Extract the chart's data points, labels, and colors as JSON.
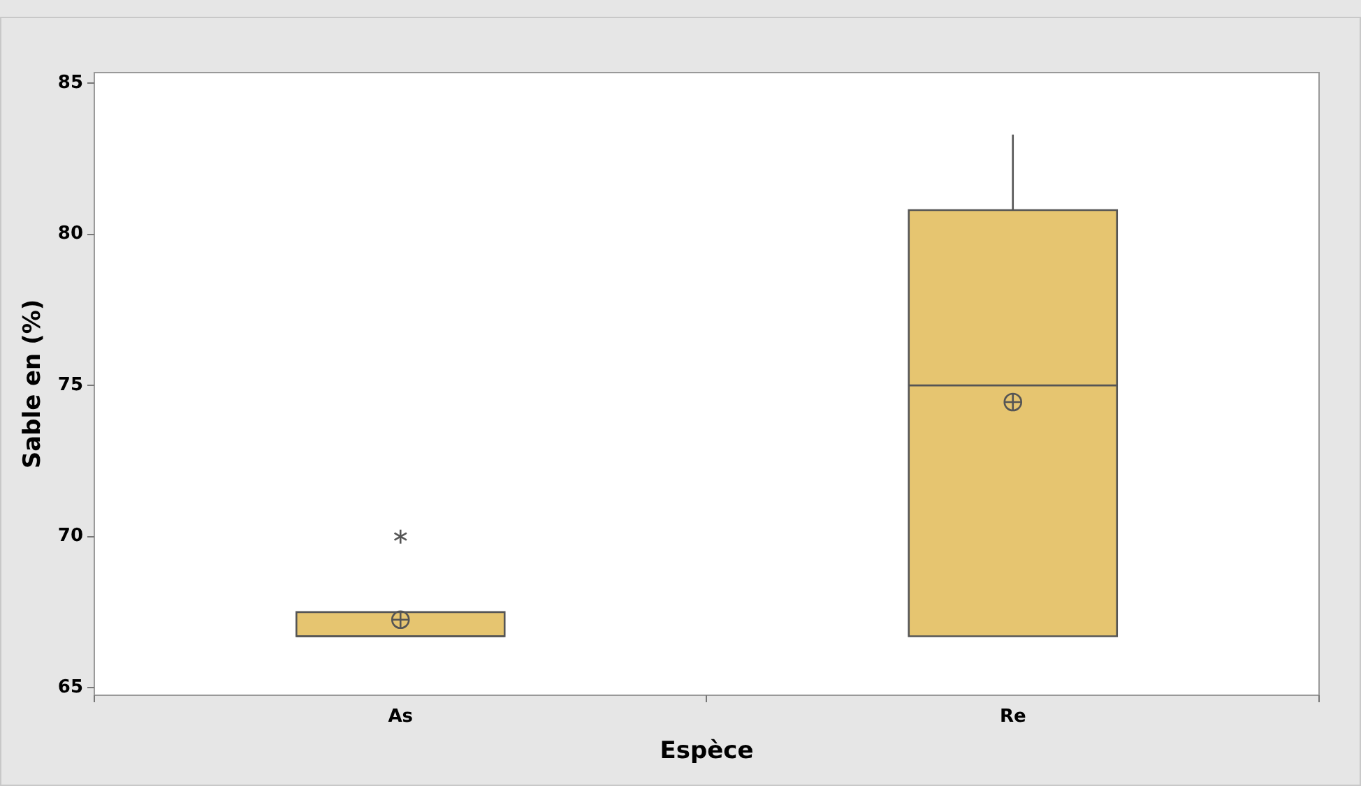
{
  "chart_data": {
    "type": "box",
    "xlabel": "Espèce",
    "ylabel": "Sable en (%)",
    "categories": [
      "As",
      "Re"
    ],
    "color": "#e6c570",
    "ylim": [
      64.75,
      85.35
    ],
    "yticks": [
      65,
      70,
      75,
      80,
      85
    ],
    "grid": false,
    "legend": false,
    "boxes": [
      {
        "low": 66.7,
        "q1": 66.7,
        "median": 66.7,
        "q3": 67.5,
        "high": 67.5,
        "mean": 67.25,
        "outliers": [
          70
        ]
      },
      {
        "low": 66.7,
        "q1": 66.7,
        "median": 75,
        "q3": 80.8,
        "high": 83.3,
        "mean": 74.45
      }
    ]
  }
}
